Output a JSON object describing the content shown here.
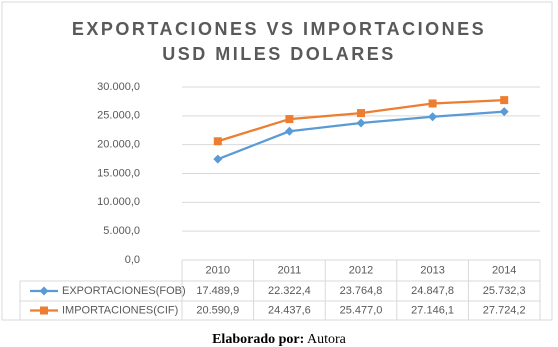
{
  "chart_data": {
    "type": "line",
    "title": "EXPORTACIONES VS IMPORTACIONES",
    "subtitle": "USD MILES DOLARES",
    "categories": [
      "2010",
      "2011",
      "2012",
      "2013",
      "2014"
    ],
    "series": [
      {
        "name": "EXPORTACIONES(FOB)",
        "color": "#5b9bd5",
        "marker": "diamond",
        "values": [
          17489.9,
          22322.4,
          23764.8,
          24847.8,
          25732.3
        ],
        "value_labels": [
          "17.489,9",
          "22.322,4",
          "23.764,8",
          "24.847,8",
          "25.732,3"
        ]
      },
      {
        "name": "IMPORTACIONES(CIF)",
        "color": "#ed7d31",
        "marker": "square",
        "values": [
          20590.9,
          24437.6,
          25477.0,
          27146.1,
          27724.2
        ],
        "value_labels": [
          "20.590,9",
          "24.437,6",
          "25.477,0",
          "27.146,1",
          "27.724,2"
        ]
      }
    ],
    "ylim": [
      0,
      30000
    ],
    "yticks": [
      {
        "value": 0,
        "label": "0,0"
      },
      {
        "value": 5000,
        "label": "5.000,0"
      },
      {
        "value": 10000,
        "label": "10.000,0"
      },
      {
        "value": 15000,
        "label": "15.000,0"
      },
      {
        "value": 20000,
        "label": "20.000,0"
      },
      {
        "value": 25000,
        "label": "25.000,0"
      },
      {
        "value": 30000,
        "label": "30.000,0"
      }
    ],
    "grid": true
  },
  "caption": {
    "label": "Elaborado por:",
    "text": "Autora"
  }
}
